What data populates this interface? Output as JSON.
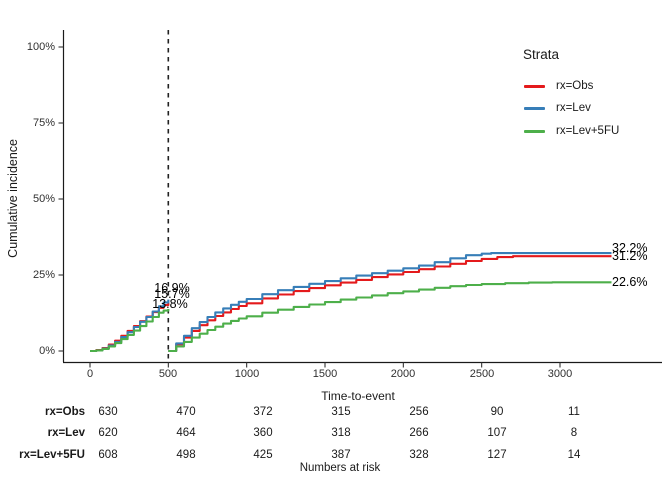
{
  "chart_data": {
    "type": "line",
    "title": "",
    "xlabel": "Time-to-event",
    "ylabel": "Cumulative incidence",
    "x_tick_values": [
      0,
      500,
      1000,
      1500,
      2000,
      2500,
      3000
    ],
    "x_tick_labels": [
      "0",
      "500",
      "1000",
      "1500",
      "2000",
      "2500",
      "3000"
    ],
    "y_tick_values": [
      0,
      25,
      50,
      75,
      100
    ],
    "y_tick_labels": [
      "0%",
      "25%",
      "50%",
      "75%",
      "100%"
    ],
    "xlim": [
      0,
      3329
    ],
    "ylim": [
      0,
      100
    ],
    "grid": false,
    "legend_position": "right",
    "vline_x": 500,
    "vline_style": "dashed",
    "series": [
      {
        "name": "rx=Obs",
        "color": "#E41A1C",
        "label_500": "15.7%",
        "label_end": "31.2%",
        "segment1": [
          [
            0,
            0
          ],
          [
            40,
            0.3
          ],
          [
            80,
            1.0
          ],
          [
            120,
            2.1
          ],
          [
            160,
            3.4
          ],
          [
            200,
            5.0
          ],
          [
            240,
            6.6
          ],
          [
            280,
            8.2
          ],
          [
            320,
            9.8
          ],
          [
            360,
            11.3
          ],
          [
            400,
            12.8
          ],
          [
            440,
            14.2
          ],
          [
            470,
            15.1
          ],
          [
            500,
            15.7
          ]
        ],
        "segment2": [
          [
            500,
            0
          ],
          [
            550,
            2.2
          ],
          [
            600,
            4.4
          ],
          [
            650,
            6.6
          ],
          [
            700,
            8.5
          ],
          [
            750,
            10.1
          ],
          [
            800,
            11.5
          ],
          [
            850,
            12.7
          ],
          [
            900,
            13.8
          ],
          [
            950,
            14.8
          ],
          [
            1000,
            15.7
          ],
          [
            1100,
            17.3
          ],
          [
            1200,
            18.6
          ],
          [
            1300,
            19.7
          ],
          [
            1400,
            20.7
          ],
          [
            1500,
            21.6
          ],
          [
            1600,
            22.5
          ],
          [
            1700,
            23.4
          ],
          [
            1800,
            24.3
          ],
          [
            1900,
            25.2
          ],
          [
            2000,
            26.0
          ],
          [
            2100,
            26.9
          ],
          [
            2200,
            27.8
          ],
          [
            2300,
            28.7
          ],
          [
            2400,
            29.6
          ],
          [
            2500,
            30.3
          ],
          [
            2600,
            30.9
          ],
          [
            2700,
            31.2
          ],
          [
            3329,
            31.2
          ]
        ]
      },
      {
        "name": "rx=Lev",
        "color": "#377EB8",
        "label_500": "16.9%",
        "label_end": "32.2%",
        "segment1": [
          [
            0,
            0
          ],
          [
            40,
            0.2
          ],
          [
            80,
            0.8
          ],
          [
            120,
            1.8
          ],
          [
            160,
            3.0
          ],
          [
            200,
            4.6
          ],
          [
            240,
            6.2
          ],
          [
            280,
            7.9
          ],
          [
            320,
            9.6
          ],
          [
            360,
            11.2
          ],
          [
            400,
            13.0
          ],
          [
            440,
            14.7
          ],
          [
            470,
            16.0
          ],
          [
            500,
            16.9
          ]
        ],
        "segment2": [
          [
            500,
            0
          ],
          [
            550,
            2.5
          ],
          [
            600,
            5.0
          ],
          [
            650,
            7.5
          ],
          [
            700,
            9.5
          ],
          [
            750,
            11.2
          ],
          [
            800,
            12.7
          ],
          [
            850,
            14.0
          ],
          [
            900,
            15.2
          ],
          [
            950,
            16.2
          ],
          [
            1000,
            17.1
          ],
          [
            1100,
            18.7
          ],
          [
            1200,
            20.0
          ],
          [
            1300,
            21.1
          ],
          [
            1400,
            22.1
          ],
          [
            1500,
            23.0
          ],
          [
            1600,
            23.9
          ],
          [
            1700,
            24.8
          ],
          [
            1800,
            25.6
          ],
          [
            1900,
            26.4
          ],
          [
            2000,
            27.2
          ],
          [
            2100,
            28.1
          ],
          [
            2200,
            29.2
          ],
          [
            2300,
            30.5
          ],
          [
            2400,
            31.5
          ],
          [
            2500,
            32.0
          ],
          [
            2560,
            32.2
          ],
          [
            3329,
            32.2
          ]
        ]
      },
      {
        "name": "rx=Lev+5FU",
        "color": "#4DAF4A",
        "label_500": "13.8%",
        "label_end": "22.6%",
        "segment1": [
          [
            0,
            0
          ],
          [
            40,
            0.2
          ],
          [
            80,
            0.7
          ],
          [
            120,
            1.5
          ],
          [
            160,
            2.6
          ],
          [
            200,
            3.9
          ],
          [
            240,
            5.3
          ],
          [
            280,
            6.7
          ],
          [
            320,
            8.2
          ],
          [
            360,
            9.7
          ],
          [
            400,
            11.2
          ],
          [
            440,
            12.6
          ],
          [
            470,
            13.3
          ],
          [
            500,
            13.8
          ]
        ],
        "segment2": [
          [
            500,
            0
          ],
          [
            550,
            1.5
          ],
          [
            600,
            3.0
          ],
          [
            650,
            4.4
          ],
          [
            700,
            5.7
          ],
          [
            750,
            6.9
          ],
          [
            800,
            8.0
          ],
          [
            850,
            9.0
          ],
          [
            900,
            9.9
          ],
          [
            950,
            10.7
          ],
          [
            1000,
            11.4
          ],
          [
            1100,
            12.6
          ],
          [
            1200,
            13.6
          ],
          [
            1300,
            14.5
          ],
          [
            1400,
            15.3
          ],
          [
            1500,
            16.1
          ],
          [
            1600,
            16.9
          ],
          [
            1700,
            17.6
          ],
          [
            1800,
            18.3
          ],
          [
            1900,
            19.0
          ],
          [
            2000,
            19.6
          ],
          [
            2100,
            20.2
          ],
          [
            2200,
            20.8
          ],
          [
            2300,
            21.3
          ],
          [
            2400,
            21.7
          ],
          [
            2500,
            22.0
          ],
          [
            2650,
            22.3
          ],
          [
            2800,
            22.5
          ],
          [
            2950,
            22.6
          ],
          [
            3329,
            22.6
          ]
        ]
      }
    ]
  },
  "legend": {
    "title": "Strata",
    "items": [
      {
        "label": "rx=Obs",
        "color": "#E41A1C"
      },
      {
        "label": "rx=Lev",
        "color": "#377EB8"
      },
      {
        "label": "rx=Lev+5FU",
        "color": "#4DAF4A"
      }
    ]
  },
  "risk_table": {
    "caption": "Numbers at risk",
    "rows": [
      {
        "label": "rx=Obs",
        "values": [
          630,
          470,
          372,
          315,
          256,
          90,
          11
        ]
      },
      {
        "label": "rx=Lev",
        "values": [
          620,
          464,
          360,
          318,
          266,
          107,
          8
        ]
      },
      {
        "label": "rx=Lev+5FU",
        "values": [
          608,
          498,
          425,
          387,
          328,
          127,
          14
        ]
      }
    ]
  }
}
